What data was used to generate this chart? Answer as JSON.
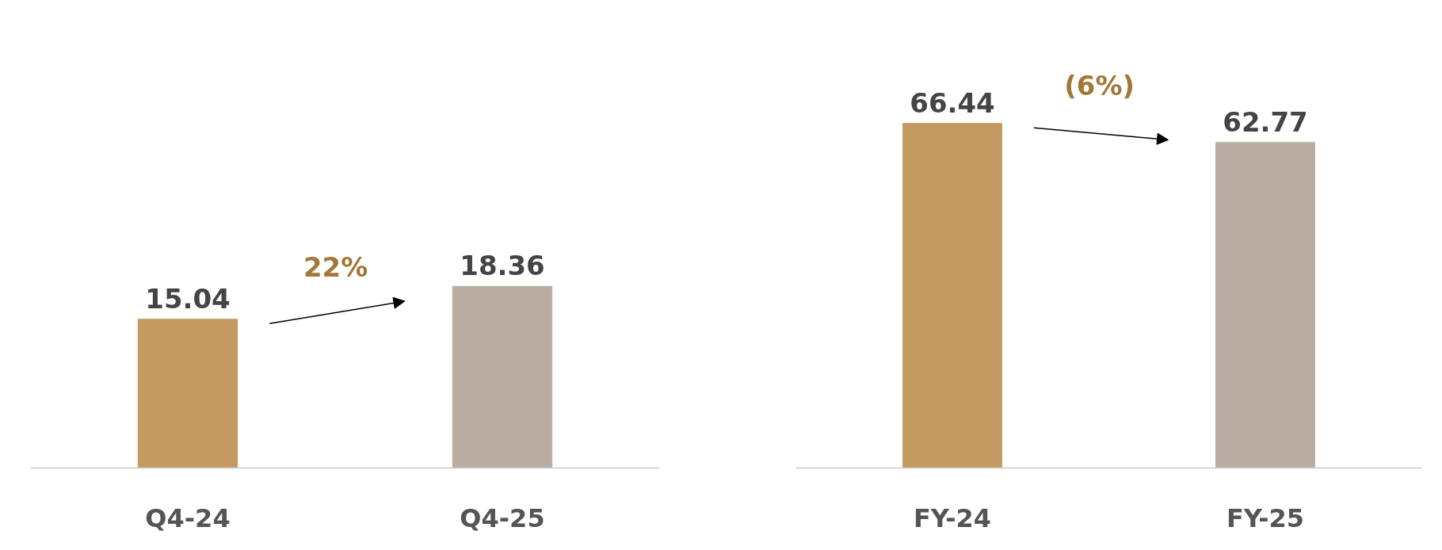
{
  "chart_data": [
    {
      "type": "bar",
      "categories": [
        "Q4-24",
        "Q4-25"
      ],
      "values": [
        15.04,
        18.36
      ],
      "colors": [
        "#c49a62",
        "#b8ada0"
      ],
      "data_labels": true,
      "grid": false,
      "tick_labels": "x",
      "annotations": [
        "22%"
      ]
    },
    {
      "type": "bar",
      "categories": [
        "FY-24",
        "FY-25"
      ],
      "values": [
        66.44,
        62.77
      ],
      "colors": [
        "#c49a62",
        "#b8ada0"
      ],
      "data_labels": true,
      "grid": false,
      "tick_labels": "x",
      "annotations": [
        "(6%)"
      ]
    }
  ]
}
